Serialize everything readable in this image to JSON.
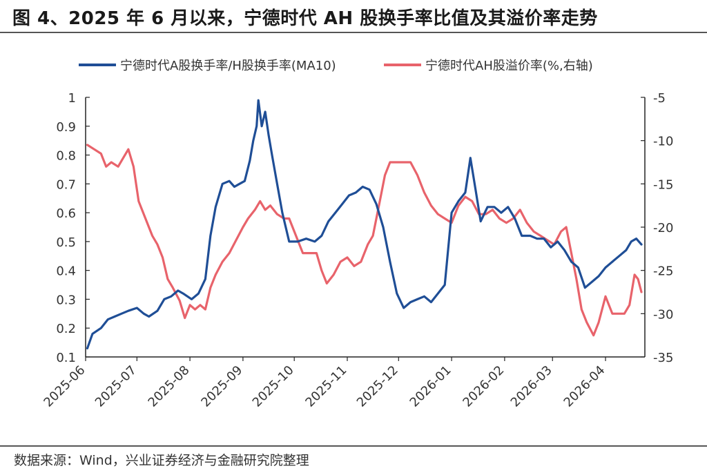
{
  "figure": {
    "title": "图 4、2025 年 6 月以来，宁德时代 AH 股换手率比值及其溢价率走势",
    "source": "数据来源：Wind，兴业证券经济与金融研究院整理"
  },
  "chart_data": {
    "type": "line",
    "legend_position": "top",
    "grid": false,
    "x_tick_labels": [
      "2025-06",
      "2025-07",
      "2025-08",
      "2025-09",
      "2025-10",
      "2025-11",
      "2025-12",
      "2026-01",
      "2026-02",
      "2026-03",
      "2026-04"
    ],
    "y_left": {
      "lim": [
        0.1,
        1.0
      ],
      "ticks": [
        0.1,
        0.2,
        0.3,
        0.4,
        0.5,
        0.6,
        0.7,
        0.8,
        0.9,
        1
      ],
      "tick_labels": [
        "0.1",
        "0.2",
        "0.3",
        "0.4",
        "0.5",
        "0.6",
        "0.7",
        "0.8",
        "0.9",
        "1"
      ]
    },
    "y_right": {
      "lim": [
        -35,
        -5
      ],
      "ticks": [
        -35,
        -30,
        -25,
        -20,
        -15,
        -10,
        -5
      ],
      "tick_labels": [
        "-35",
        "-30",
        "-25",
        "-20",
        "-15",
        "-10",
        "-5"
      ]
    },
    "series": [
      {
        "name": "宁德时代A股换手率/H股换手率(MA10)",
        "axis": "left",
        "color": "#1f4e96",
        "points": [
          [
            "2025-06-02",
            0.13
          ],
          [
            "2025-06-05",
            0.18
          ],
          [
            "2025-06-10",
            0.2
          ],
          [
            "2025-06-14",
            0.23
          ],
          [
            "2025-06-18",
            0.24
          ],
          [
            "2025-06-22",
            0.25
          ],
          [
            "2025-06-26",
            0.26
          ],
          [
            "2025-07-01",
            0.27
          ],
          [
            "2025-07-05",
            0.25
          ],
          [
            "2025-07-08",
            0.24
          ],
          [
            "2025-07-13",
            0.26
          ],
          [
            "2025-07-17",
            0.3
          ],
          [
            "2025-07-21",
            0.31
          ],
          [
            "2025-07-25",
            0.33
          ],
          [
            "2025-07-28",
            0.32
          ],
          [
            "2025-08-02",
            0.3
          ],
          [
            "2025-08-06",
            0.32
          ],
          [
            "2025-08-10",
            0.37
          ],
          [
            "2025-08-13",
            0.52
          ],
          [
            "2025-08-16",
            0.62
          ],
          [
            "2025-08-20",
            0.7
          ],
          [
            "2025-08-24",
            0.71
          ],
          [
            "2025-08-27",
            0.69
          ],
          [
            "2025-08-30",
            0.7
          ],
          [
            "2025-09-02",
            0.71
          ],
          [
            "2025-09-05",
            0.78
          ],
          [
            "2025-09-07",
            0.85
          ],
          [
            "2025-09-09",
            0.9
          ],
          [
            "2025-09-10",
            0.99
          ],
          [
            "2025-09-12",
            0.9
          ],
          [
            "2025-09-14",
            0.95
          ],
          [
            "2025-09-16",
            0.87
          ],
          [
            "2025-09-18",
            0.8
          ],
          [
            "2025-09-21",
            0.7
          ],
          [
            "2025-09-24",
            0.6
          ],
          [
            "2025-09-28",
            0.5
          ],
          [
            "2025-10-03",
            0.5
          ],
          [
            "2025-10-08",
            0.51
          ],
          [
            "2025-10-13",
            0.5
          ],
          [
            "2025-10-17",
            0.52
          ],
          [
            "2025-10-21",
            0.57
          ],
          [
            "2025-10-25",
            0.6
          ],
          [
            "2025-10-29",
            0.63
          ],
          [
            "2025-11-02",
            0.66
          ],
          [
            "2025-11-06",
            0.67
          ],
          [
            "2025-11-10",
            0.69
          ],
          [
            "2025-11-14",
            0.68
          ],
          [
            "2025-11-18",
            0.63
          ],
          [
            "2025-11-22",
            0.55
          ],
          [
            "2025-11-26",
            0.43
          ],
          [
            "2025-11-30",
            0.32
          ],
          [
            "2025-12-04",
            0.27
          ],
          [
            "2025-12-08",
            0.29
          ],
          [
            "2025-12-12",
            0.3
          ],
          [
            "2025-12-16",
            0.31
          ],
          [
            "2025-12-20",
            0.29
          ],
          [
            "2025-12-24",
            0.32
          ],
          [
            "2025-12-28",
            0.35
          ],
          [
            "2026-01-01",
            0.6
          ],
          [
            "2026-01-05",
            0.64
          ],
          [
            "2026-01-09",
            0.67
          ],
          [
            "2026-01-12",
            0.79
          ],
          [
            "2026-01-15",
            0.68
          ],
          [
            "2026-01-18",
            0.57
          ],
          [
            "2026-01-22",
            0.62
          ],
          [
            "2026-01-26",
            0.62
          ],
          [
            "2026-01-30",
            0.6
          ],
          [
            "2026-02-03",
            0.62
          ],
          [
            "2026-02-07",
            0.58
          ],
          [
            "2026-02-11",
            0.52
          ],
          [
            "2026-02-16",
            0.52
          ],
          [
            "2026-02-20",
            0.51
          ],
          [
            "2026-02-24",
            0.51
          ],
          [
            "2026-02-28",
            0.48
          ],
          [
            "2026-03-04",
            0.5
          ],
          [
            "2026-03-08",
            0.47
          ],
          [
            "2026-03-12",
            0.43
          ],
          [
            "2026-03-16",
            0.41
          ],
          [
            "2026-03-20",
            0.34
          ],
          [
            "2026-03-24",
            0.36
          ],
          [
            "2026-03-28",
            0.38
          ],
          [
            "2026-04-01",
            0.41
          ],
          [
            "2026-04-05",
            0.43
          ],
          [
            "2026-04-09",
            0.45
          ],
          [
            "2026-04-13",
            0.47
          ],
          [
            "2026-04-16",
            0.5
          ],
          [
            "2026-04-19",
            0.51
          ],
          [
            "2026-04-22",
            0.49
          ]
        ]
      },
      {
        "name": "宁德时代AH股溢价率(%,右轴)",
        "axis": "right",
        "color": "#e8636b",
        "points": [
          [
            "2025-06-02",
            -10.5
          ],
          [
            "2025-06-06",
            -11.0
          ],
          [
            "2025-06-10",
            -11.5
          ],
          [
            "2025-06-13",
            -13.0
          ],
          [
            "2025-06-16",
            -12.5
          ],
          [
            "2025-06-20",
            -13.0
          ],
          [
            "2025-06-23",
            -12.0
          ],
          [
            "2025-06-26",
            -11.0
          ],
          [
            "2025-06-29",
            -13.0
          ],
          [
            "2025-07-02",
            -17.0
          ],
          [
            "2025-07-06",
            -19.0
          ],
          [
            "2025-07-10",
            -21.0
          ],
          [
            "2025-07-13",
            -22.0
          ],
          [
            "2025-07-16",
            -23.5
          ],
          [
            "2025-07-19",
            -26.0
          ],
          [
            "2025-07-22",
            -27.0
          ],
          [
            "2025-07-26",
            -28.5
          ],
          [
            "2025-07-29",
            -30.5
          ],
          [
            "2025-08-01",
            -29.0
          ],
          [
            "2025-08-04",
            -29.5
          ],
          [
            "2025-08-07",
            -29.0
          ],
          [
            "2025-08-10",
            -29.5
          ],
          [
            "2025-08-13",
            -27.0
          ],
          [
            "2025-08-16",
            -25.5
          ],
          [
            "2025-08-20",
            -24.0
          ],
          [
            "2025-08-24",
            -23.0
          ],
          [
            "2025-08-28",
            -21.5
          ],
          [
            "2025-09-01",
            -20.0
          ],
          [
            "2025-09-04",
            -19.0
          ],
          [
            "2025-09-08",
            -18.0
          ],
          [
            "2025-09-11",
            -17.0
          ],
          [
            "2025-09-14",
            -18.0
          ],
          [
            "2025-09-17",
            -17.5
          ],
          [
            "2025-09-21",
            -18.5
          ],
          [
            "2025-09-25",
            -19.0
          ],
          [
            "2025-09-28",
            -19.0
          ],
          [
            "2025-10-02",
            -21.0
          ],
          [
            "2025-10-06",
            -23.0
          ],
          [
            "2025-10-10",
            -23.0
          ],
          [
            "2025-10-14",
            -23.0
          ],
          [
            "2025-10-17",
            -25.0
          ],
          [
            "2025-10-20",
            -26.5
          ],
          [
            "2025-10-24",
            -25.5
          ],
          [
            "2025-10-28",
            -24.0
          ],
          [
            "2025-11-01",
            -23.5
          ],
          [
            "2025-11-05",
            -24.5
          ],
          [
            "2025-11-09",
            -24.0
          ],
          [
            "2025-11-13",
            -22.0
          ],
          [
            "2025-11-16",
            -21.0
          ],
          [
            "2025-11-18",
            -19.0
          ],
          [
            "2025-11-20",
            -17.0
          ],
          [
            "2025-11-23",
            -14.0
          ],
          [
            "2025-11-26",
            -12.5
          ],
          [
            "2025-11-30",
            -12.5
          ],
          [
            "2025-12-04",
            -12.5
          ],
          [
            "2025-12-08",
            -12.5
          ],
          [
            "2025-12-12",
            -14.0
          ],
          [
            "2025-12-16",
            -16.0
          ],
          [
            "2025-12-20",
            -17.5
          ],
          [
            "2025-12-24",
            -18.5
          ],
          [
            "2025-12-28",
            -19.0
          ],
          [
            "2026-01-01",
            -19.5
          ],
          [
            "2026-01-05",
            -17.5
          ],
          [
            "2026-01-09",
            -16.5
          ],
          [
            "2026-01-13",
            -17.0
          ],
          [
            "2026-01-17",
            -18.5
          ],
          [
            "2026-01-21",
            -18.5
          ],
          [
            "2026-01-25",
            -18.0
          ],
          [
            "2026-01-29",
            -19.0
          ],
          [
            "2026-02-02",
            -19.5
          ],
          [
            "2026-02-06",
            -19.0
          ],
          [
            "2026-02-10",
            -18.0
          ],
          [
            "2026-02-14",
            -19.5
          ],
          [
            "2026-02-18",
            -20.5
          ],
          [
            "2026-02-22",
            -21.0
          ],
          [
            "2026-02-26",
            -21.5
          ],
          [
            "2026-03-02",
            -22.0
          ],
          [
            "2026-03-06",
            -20.5
          ],
          [
            "2026-03-09",
            -20.0
          ],
          [
            "2026-03-12",
            -23.0
          ],
          [
            "2026-03-15",
            -26.0
          ],
          [
            "2026-03-18",
            -29.5
          ],
          [
            "2026-03-21",
            -31.0
          ],
          [
            "2026-03-25",
            -32.5
          ],
          [
            "2026-03-28",
            -31.0
          ],
          [
            "2026-04-01",
            -28.0
          ],
          [
            "2026-04-05",
            -30.0
          ],
          [
            "2026-04-09",
            -30.0
          ],
          [
            "2026-04-12",
            -30.0
          ],
          [
            "2026-04-15",
            -29.0
          ],
          [
            "2026-04-18",
            -25.5
          ],
          [
            "2026-04-20",
            -26.0
          ],
          [
            "2026-04-22",
            -27.5
          ]
        ]
      }
    ]
  }
}
